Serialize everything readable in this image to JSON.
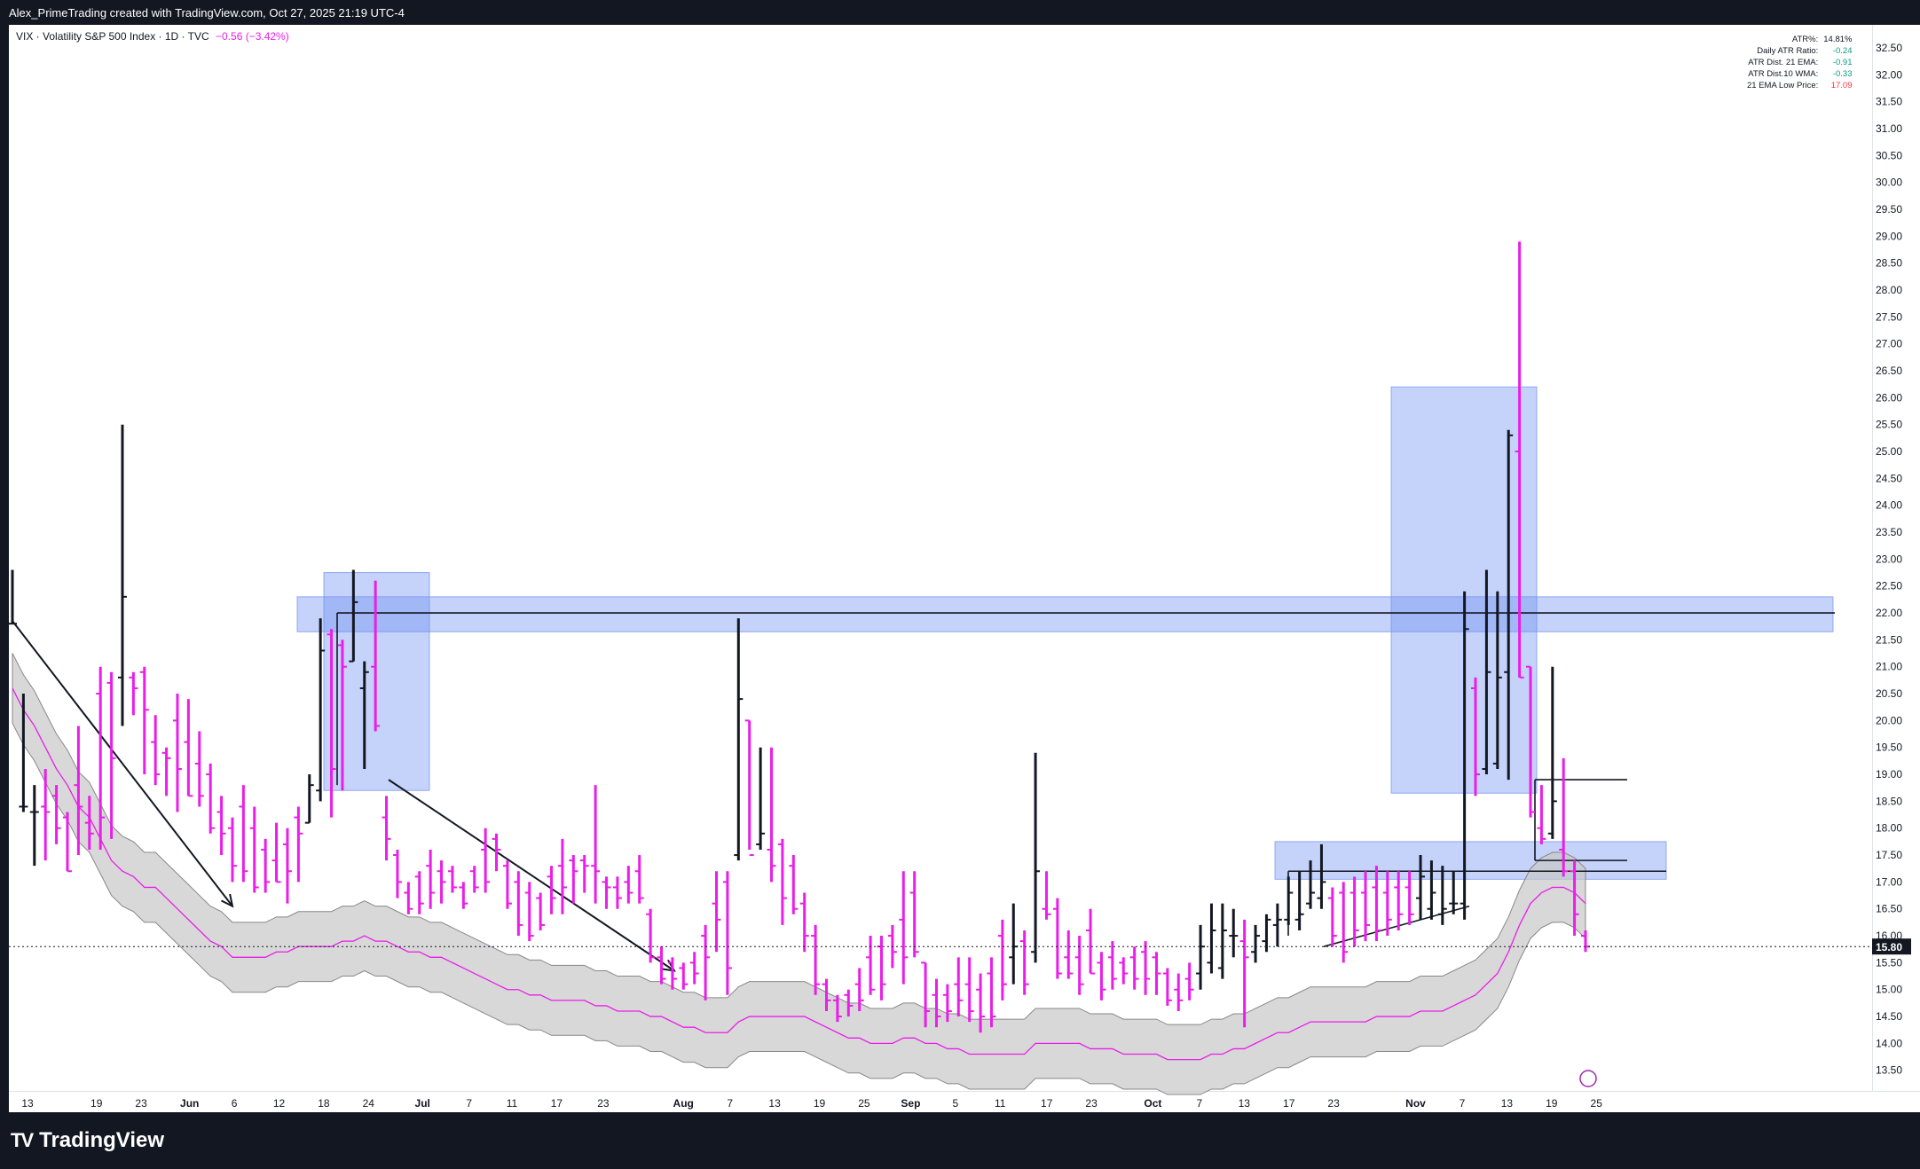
{
  "header": {
    "title": "Alex_PrimeTrading created with TradingView.com, Oct 27, 2025 21:19 UTC-4"
  },
  "legend": {
    "symbol": "VIX · Volatility S&P 500 Index · 1D · TVC",
    "change": "−0.56 (−3.42%)"
  },
  "stats": [
    {
      "label": "ATR%:",
      "value": "14.81%"
    },
    {
      "label": "Daily ATR Ratio:",
      "value": "-0.24"
    },
    {
      "label": "ATR Dist. 21 EMA:",
      "value": "-0.91"
    },
    {
      "label": "ATR Dist.10 WMA:",
      "value": "-0.33"
    },
    {
      "label": "21 EMA Low Price:",
      "value": "17.09"
    }
  ],
  "brand": {
    "name": "TradingView",
    "logo": "TV"
  },
  "colors": {
    "up": "#131722",
    "down": "#e91ee9",
    "ema": "#e91ee9",
    "band": "#c8c8c8",
    "box": "#6d8ff0",
    "bg": "#131722"
  },
  "chart_data": {
    "type": "ohlc",
    "title": "VIX · Volatility S&P 500 Index · 1D · TVC",
    "ylim": [
      13.0,
      32.9
    ],
    "y_ticks": [
      "32.50",
      "32.00",
      "31.50",
      "31.00",
      "30.50",
      "30.00",
      "29.50",
      "29.00",
      "28.50",
      "28.00",
      "27.50",
      "27.00",
      "26.50",
      "26.00",
      "25.50",
      "25.00",
      "24.50",
      "24.00",
      "23.50",
      "23.00",
      "22.50",
      "22.00",
      "21.50",
      "21.00",
      "20.50",
      "20.00",
      "19.50",
      "19.00",
      "18.50",
      "18.00",
      "17.50",
      "17.00",
      "16.50",
      "16.00",
      "15.50",
      "15.00",
      "14.50",
      "14.00",
      "13.50"
    ],
    "x_ticks": [
      "13",
      "19",
      "23",
      "Jun",
      "6",
      "12",
      "18",
      "24",
      "Jul",
      "7",
      "11",
      "17",
      "23",
      "Aug",
      "7",
      "13",
      "19",
      "25",
      "Sep",
      "5",
      "11",
      "17",
      "23",
      "Oct",
      "7",
      "13",
      "17",
      "23",
      "Nov",
      "7",
      "13",
      "19",
      "25"
    ],
    "last_price": "15.80",
    "bars": [
      {
        "h": 22.8,
        "l": 21.8,
        "o": 21.8,
        "c": 21.8
      },
      {
        "h": 20.5,
        "l": 18.3,
        "o": 18.4,
        "c": 18.4
      },
      {
        "h": 18.8,
        "l": 17.3,
        "o": 18.3,
        "c": 18.3
      },
      {
        "h": 19.1,
        "l": 17.4,
        "o": 18.4,
        "c": 18.3
      },
      {
        "h": 18.8,
        "l": 17.7,
        "o": 18.6,
        "c": 18.0
      },
      {
        "h": 18.3,
        "l": 17.2,
        "o": 18.2,
        "c": 17.2
      },
      {
        "h": 19.9,
        "l": 17.5,
        "o": 18.8,
        "c": 18.4
      },
      {
        "h": 18.6,
        "l": 17.6,
        "o": 18.1,
        "c": 17.9
      },
      {
        "h": 21.0,
        "l": 17.6,
        "o": 20.5,
        "c": 18.2
      },
      {
        "h": 20.9,
        "l": 17.8,
        "o": 20.7,
        "c": 19.3
      },
      {
        "h": 25.5,
        "l": 19.9,
        "o": 20.8,
        "c": 22.3
      },
      {
        "h": 20.9,
        "l": 20.1,
        "o": 20.8,
        "c": 20.6
      },
      {
        "h": 21.0,
        "l": 19.0,
        "o": 20.9,
        "c": 20.2
      },
      {
        "h": 20.1,
        "l": 18.8,
        "o": 19.6,
        "c": 19.0
      },
      {
        "h": 19.5,
        "l": 18.6,
        "o": 19.4,
        "c": 19.3
      },
      {
        "h": 20.5,
        "l": 18.3,
        "o": 20.0,
        "c": 19.1
      },
      {
        "h": 20.4,
        "l": 18.6,
        "o": 19.6,
        "c": 18.6
      },
      {
        "h": 19.8,
        "l": 18.4,
        "o": 19.2,
        "c": 18.6
      },
      {
        "h": 19.2,
        "l": 17.9,
        "o": 19.0,
        "c": 18.0
      },
      {
        "h": 18.6,
        "l": 17.5,
        "o": 18.3,
        "c": 17.9
      },
      {
        "h": 18.2,
        "l": 17.0,
        "o": 18.0,
        "c": 17.3
      },
      {
        "h": 18.8,
        "l": 17.0,
        "o": 18.4,
        "c": 17.2
      },
      {
        "h": 18.4,
        "l": 16.8,
        "o": 18.0,
        "c": 16.9
      },
      {
        "h": 17.8,
        "l": 16.8,
        "o": 17.6,
        "c": 17.0
      },
      {
        "h": 18.1,
        "l": 17.0,
        "o": 17.4,
        "c": 17.0
      },
      {
        "h": 18.0,
        "l": 16.6,
        "o": 17.7,
        "c": 17.2
      },
      {
        "h": 18.4,
        "l": 17.0,
        "o": 18.2,
        "c": 17.9
      },
      {
        "h": 19.0,
        "l": 18.1,
        "o": 18.1,
        "c": 18.8
      },
      {
        "h": 21.9,
        "l": 18.5,
        "o": 18.7,
        "c": 21.3
      },
      {
        "h": 21.7,
        "l": 18.2,
        "o": 21.6,
        "c": 19.1
      },
      {
        "h": 21.5,
        "l": 18.7,
        "o": 21.4,
        "c": 21.0
      },
      {
        "h": 22.8,
        "l": 21.1,
        "o": 21.1,
        "c": 22.2
      },
      {
        "h": 21.1,
        "l": 19.1,
        "o": 20.6,
        "c": 20.9
      },
      {
        "h": 22.6,
        "l": 19.8,
        "o": 21.0,
        "c": 19.9
      },
      {
        "h": 18.6,
        "l": 17.4,
        "o": 18.2,
        "c": 17.8
      },
      {
        "h": 17.6,
        "l": 16.7,
        "o": 17.5,
        "c": 17.0
      },
      {
        "h": 17.0,
        "l": 16.4,
        "o": 16.8,
        "c": 16.5
      },
      {
        "h": 17.2,
        "l": 16.4,
        "o": 17.1,
        "c": 16.6
      },
      {
        "h": 17.6,
        "l": 16.5,
        "o": 17.3,
        "c": 16.8
      },
      {
        "h": 17.4,
        "l": 16.6,
        "o": 17.2,
        "c": 17.0
      },
      {
        "h": 17.3,
        "l": 16.8,
        "o": 17.2,
        "c": 16.9
      },
      {
        "h": 17.0,
        "l": 16.5,
        "o": 16.9,
        "c": 16.6
      },
      {
        "h": 17.3,
        "l": 16.8,
        "o": 17.2,
        "c": 16.9
      },
      {
        "h": 18.0,
        "l": 16.8,
        "o": 17.6,
        "c": 17.0
      },
      {
        "h": 17.9,
        "l": 17.2,
        "o": 17.8,
        "c": 17.6
      },
      {
        "h": 17.4,
        "l": 16.5,
        "o": 17.3,
        "c": 16.6
      },
      {
        "h": 17.2,
        "l": 16.0,
        "o": 17.0,
        "c": 16.2
      },
      {
        "h": 17.0,
        "l": 15.9,
        "o": 16.8,
        "c": 16.0
      },
      {
        "h": 16.8,
        "l": 16.1,
        "o": 16.7,
        "c": 16.2
      },
      {
        "h": 17.3,
        "l": 16.4,
        "o": 17.1,
        "c": 16.7
      },
      {
        "h": 17.8,
        "l": 16.4,
        "o": 17.3,
        "c": 16.9
      },
      {
        "h": 17.5,
        "l": 16.6,
        "o": 17.4,
        "c": 17.2
      },
      {
        "h": 17.5,
        "l": 16.8,
        "o": 17.4,
        "c": 17.3
      },
      {
        "h": 18.8,
        "l": 16.6,
        "o": 17.3,
        "c": 17.2
      },
      {
        "h": 17.1,
        "l": 16.5,
        "o": 17.0,
        "c": 16.9
      },
      {
        "h": 17.1,
        "l": 16.5,
        "o": 16.9,
        "c": 16.7
      },
      {
        "h": 17.3,
        "l": 16.6,
        "o": 17.0,
        "c": 16.8
      },
      {
        "h": 17.5,
        "l": 16.6,
        "o": 17.2,
        "c": 16.7
      },
      {
        "h": 16.5,
        "l": 15.5,
        "o": 16.4,
        "c": 15.6
      },
      {
        "h": 15.8,
        "l": 15.1,
        "o": 15.6,
        "c": 15.2
      },
      {
        "h": 15.6,
        "l": 15.0,
        "o": 15.5,
        "c": 15.2
      },
      {
        "h": 15.5,
        "l": 15.0,
        "o": 15.4,
        "c": 15.1
      },
      {
        "h": 15.7,
        "l": 15.1,
        "o": 15.5,
        "c": 15.3
      },
      {
        "h": 16.2,
        "l": 14.8,
        "o": 16.0,
        "c": 15.6
      },
      {
        "h": 17.2,
        "l": 15.7,
        "o": 16.6,
        "c": 16.3
      },
      {
        "h": 17.2,
        "l": 14.9,
        "o": 17.0,
        "c": 15.4
      },
      {
        "h": 21.9,
        "l": 17.4,
        "o": 17.5,
        "c": 20.4
      },
      {
        "h": 20.0,
        "l": 17.6,
        "o": 20.0,
        "c": 17.5
      },
      {
        "h": 19.5,
        "l": 17.6,
        "o": 17.7,
        "c": 17.9
      },
      {
        "h": 19.5,
        "l": 17.0,
        "o": 17.6,
        "c": 17.3
      },
      {
        "h": 17.8,
        "l": 16.2,
        "o": 17.7,
        "c": 16.7
      },
      {
        "h": 17.5,
        "l": 16.4,
        "o": 17.3,
        "c": 16.5
      },
      {
        "h": 16.8,
        "l": 15.7,
        "o": 16.6,
        "c": 16.0
      },
      {
        "h": 16.2,
        "l": 14.9,
        "o": 16.0,
        "c": 15.1
      },
      {
        "h": 15.2,
        "l": 14.6,
        "o": 15.1,
        "c": 14.8
      },
      {
        "h": 14.9,
        "l": 14.4,
        "o": 14.8,
        "c": 14.5
      },
      {
        "h": 15.0,
        "l": 14.5,
        "o": 14.9,
        "c": 14.7
      },
      {
        "h": 15.4,
        "l": 14.6,
        "o": 15.1,
        "c": 14.8
      },
      {
        "h": 16.0,
        "l": 14.9,
        "o": 15.6,
        "c": 15.0
      },
      {
        "h": 16.0,
        "l": 14.8,
        "o": 15.8,
        "c": 15.1
      },
      {
        "h": 16.2,
        "l": 15.4,
        "o": 16.0,
        "c": 15.7
      },
      {
        "h": 17.2,
        "l": 15.1,
        "o": 16.3,
        "c": 15.6
      },
      {
        "h": 17.2,
        "l": 15.6,
        "o": 16.8,
        "c": 15.7
      },
      {
        "h": 15.5,
        "l": 14.3,
        "o": 15.5,
        "c": 14.6
      },
      {
        "h": 15.2,
        "l": 14.3,
        "o": 14.9,
        "c": 14.5
      },
      {
        "h": 15.1,
        "l": 14.4,
        "o": 14.9,
        "c": 14.6
      },
      {
        "h": 15.6,
        "l": 14.5,
        "o": 15.1,
        "c": 14.8
      },
      {
        "h": 15.6,
        "l": 14.4,
        "o": 15.1,
        "c": 14.6
      },
      {
        "h": 15.3,
        "l": 14.2,
        "o": 15.0,
        "c": 14.5
      },
      {
        "h": 15.6,
        "l": 14.3,
        "o": 15.3,
        "c": 14.5
      },
      {
        "h": 16.3,
        "l": 14.8,
        "o": 16.0,
        "c": 15.1
      },
      {
        "h": 16.6,
        "l": 15.1,
        "o": 15.6,
        "c": 15.8
      },
      {
        "h": 16.1,
        "l": 14.9,
        "o": 15.9,
        "c": 15.1
      },
      {
        "h": 19.4,
        "l": 15.5,
        "o": 15.7,
        "c": 17.2
      },
      {
        "h": 17.2,
        "l": 16.3,
        "o": 16.5,
        "c": 16.4
      },
      {
        "h": 16.7,
        "l": 15.2,
        "o": 16.5,
        "c": 15.3
      },
      {
        "h": 16.1,
        "l": 15.2,
        "o": 15.6,
        "c": 15.3
      },
      {
        "h": 16.0,
        "l": 14.9,
        "o": 15.6,
        "c": 15.1
      },
      {
        "h": 16.5,
        "l": 15.3,
        "o": 16.1,
        "c": 15.3
      },
      {
        "h": 15.7,
        "l": 14.8,
        "o": 15.5,
        "c": 15.0
      },
      {
        "h": 15.9,
        "l": 15.0,
        "o": 15.6,
        "c": 15.2
      },
      {
        "h": 15.6,
        "l": 15.1,
        "o": 15.5,
        "c": 15.3
      },
      {
        "h": 15.8,
        "l": 15.0,
        "o": 15.6,
        "c": 15.2
      },
      {
        "h": 15.9,
        "l": 14.9,
        "o": 15.7,
        "c": 15.2
      },
      {
        "h": 15.7,
        "l": 14.9,
        "o": 15.6,
        "c": 15.3
      },
      {
        "h": 15.4,
        "l": 14.7,
        "o": 15.3,
        "c": 14.8
      },
      {
        "h": 15.3,
        "l": 14.6,
        "o": 15.0,
        "c": 14.8
      },
      {
        "h": 15.5,
        "l": 14.8,
        "o": 15.2,
        "c": 15.0
      },
      {
        "h": 16.2,
        "l": 15.0,
        "o": 15.3,
        "c": 15.8
      },
      {
        "h": 16.6,
        "l": 15.3,
        "o": 15.5,
        "c": 16.1
      },
      {
        "h": 16.6,
        "l": 15.2,
        "o": 15.4,
        "c": 16.1
      },
      {
        "h": 16.5,
        "l": 15.6,
        "o": 16.0,
        "c": 16.0
      },
      {
        "h": 16.3,
        "l": 14.3,
        "o": 15.9,
        "c": 15.6
      },
      {
        "h": 16.2,
        "l": 15.5,
        "o": 15.7,
        "c": 16.0
      },
      {
        "h": 16.4,
        "l": 15.7,
        "o": 15.9,
        "c": 16.3
      },
      {
        "h": 16.6,
        "l": 15.8,
        "o": 16.2,
        "c": 16.3
      },
      {
        "h": 17.1,
        "l": 16.2,
        "o": 16.3,
        "c": 16.8
      },
      {
        "h": 17.2,
        "l": 16.1,
        "o": 16.3,
        "c": 16.4
      },
      {
        "h": 17.4,
        "l": 16.5,
        "o": 16.6,
        "c": 16.8
      },
      {
        "h": 17.7,
        "l": 16.5,
        "o": 16.7,
        "c": 17.0
      },
      {
        "h": 16.9,
        "l": 15.8,
        "o": 16.7,
        "c": 16.0
      },
      {
        "h": 17.0,
        "l": 15.5,
        "o": 16.8,
        "c": 15.7
      },
      {
        "h": 17.1,
        "l": 15.8,
        "o": 16.8,
        "c": 16.1
      },
      {
        "h": 17.2,
        "l": 15.9,
        "o": 16.8,
        "c": 16.2
      },
      {
        "h": 17.3,
        "l": 15.9,
        "o": 16.9,
        "c": 16.1
      },
      {
        "h": 17.2,
        "l": 16.0,
        "o": 16.8,
        "c": 16.3
      },
      {
        "h": 17.2,
        "l": 16.1,
        "o": 16.9,
        "c": 16.4
      },
      {
        "h": 17.2,
        "l": 16.2,
        "o": 16.9,
        "c": 16.4
      },
      {
        "h": 17.5,
        "l": 16.3,
        "o": 16.7,
        "c": 17.1
      },
      {
        "h": 17.4,
        "l": 16.3,
        "o": 16.5,
        "c": 16.8
      },
      {
        "h": 17.3,
        "l": 16.2,
        "o": 16.4,
        "c": 16.5
      },
      {
        "h": 17.2,
        "l": 16.4,
        "o": 16.6,
        "c": 16.6
      },
      {
        "h": 22.4,
        "l": 16.3,
        "o": 16.6,
        "c": 21.7
      },
      {
        "h": 20.8,
        "l": 18.6,
        "o": 20.6,
        "c": 19.0
      },
      {
        "h": 22.8,
        "l": 19.0,
        "o": 19.1,
        "c": 20.9
      },
      {
        "h": 22.4,
        "l": 19.1,
        "o": 19.2,
        "c": 20.8
      },
      {
        "h": 25.4,
        "l": 18.9,
        "o": 20.9,
        "c": 25.3
      },
      {
        "h": 28.9,
        "l": 20.8,
        "o": 25.0,
        "c": 20.8
      },
      {
        "h": 21.0,
        "l": 18.2,
        "o": 21.0,
        "c": 18.3
      },
      {
        "h": 18.8,
        "l": 17.7,
        "o": 18.0,
        "c": 17.8
      },
      {
        "h": 21.0,
        "l": 17.8,
        "o": 17.9,
        "c": 18.5
      },
      {
        "h": 19.3,
        "l": 17.1,
        "o": 17.6,
        "c": 17.2
      },
      {
        "h": 17.4,
        "l": 16.0,
        "o": 17.2,
        "c": 16.4
      },
      {
        "h": 16.1,
        "l": 15.7,
        "o": 16.0,
        "c": 15.8
      }
    ],
    "ema_21": [
      20.6,
      20.2,
      19.9,
      19.5,
      19.1,
      18.8,
      18.4,
      18.2,
      17.8,
      17.4,
      17.2,
      17.1,
      16.9,
      16.9,
      16.7,
      16.5,
      16.3,
      16.1,
      15.9,
      15.8,
      15.6,
      15.6,
      15.6,
      15.6,
      15.7,
      15.7,
      15.8,
      15.8,
      15.8,
      15.8,
      15.9,
      15.9,
      16.0,
      15.9,
      15.9,
      15.8,
      15.7,
      15.7,
      15.6,
      15.6,
      15.5,
      15.4,
      15.3,
      15.2,
      15.1,
      15.0,
      15.0,
      14.9,
      14.9,
      14.8,
      14.8,
      14.8,
      14.8,
      14.7,
      14.7,
      14.6,
      14.6,
      14.6,
      14.5,
      14.5,
      14.4,
      14.3,
      14.3,
      14.2,
      14.2,
      14.2,
      14.4,
      14.5,
      14.5,
      14.5,
      14.5,
      14.5,
      14.5,
      14.4,
      14.3,
      14.2,
      14.1,
      14.1,
      14.0,
      14.0,
      14.0,
      14.1,
      14.1,
      14.0,
      14.0,
      13.9,
      13.9,
      13.8,
      13.8,
      13.8,
      13.8,
      13.8,
      13.8,
      14.0,
      14.0,
      14.0,
      14.0,
      14.0,
      13.9,
      13.9,
      13.9,
      13.8,
      13.8,
      13.8,
      13.8,
      13.7,
      13.7,
      13.7,
      13.7,
      13.8,
      13.8,
      13.9,
      13.9,
      14.0,
      14.1,
      14.2,
      14.2,
      14.3,
      14.4,
      14.4,
      14.4,
      14.4,
      14.4,
      14.4,
      14.5,
      14.5,
      14.5,
      14.5,
      14.6,
      14.6,
      14.6,
      14.7,
      14.8,
      14.9,
      15.1,
      15.3,
      15.7,
      16.2,
      16.6,
      16.8,
      16.9,
      16.9,
      16.8,
      16.6
    ],
    "zones": [
      {
        "name": "resistance-zone",
        "y": [
          21.65,
          22.3
        ]
      },
      {
        "name": "june-box",
        "y": [
          18.7,
          22.75
        ]
      },
      {
        "name": "october-box",
        "y": [
          18.65,
          26.2
        ]
      },
      {
        "name": "support-zone",
        "y": [
          17.05,
          17.75
        ]
      }
    ],
    "lines": [
      {
        "name": "resistance-line",
        "y": 22.0
      },
      {
        "name": "support-line",
        "y": 17.2
      },
      {
        "name": "box-top-line",
        "y": 18.9
      },
      {
        "name": "box-mid-line",
        "y": 17.4
      }
    ]
  }
}
